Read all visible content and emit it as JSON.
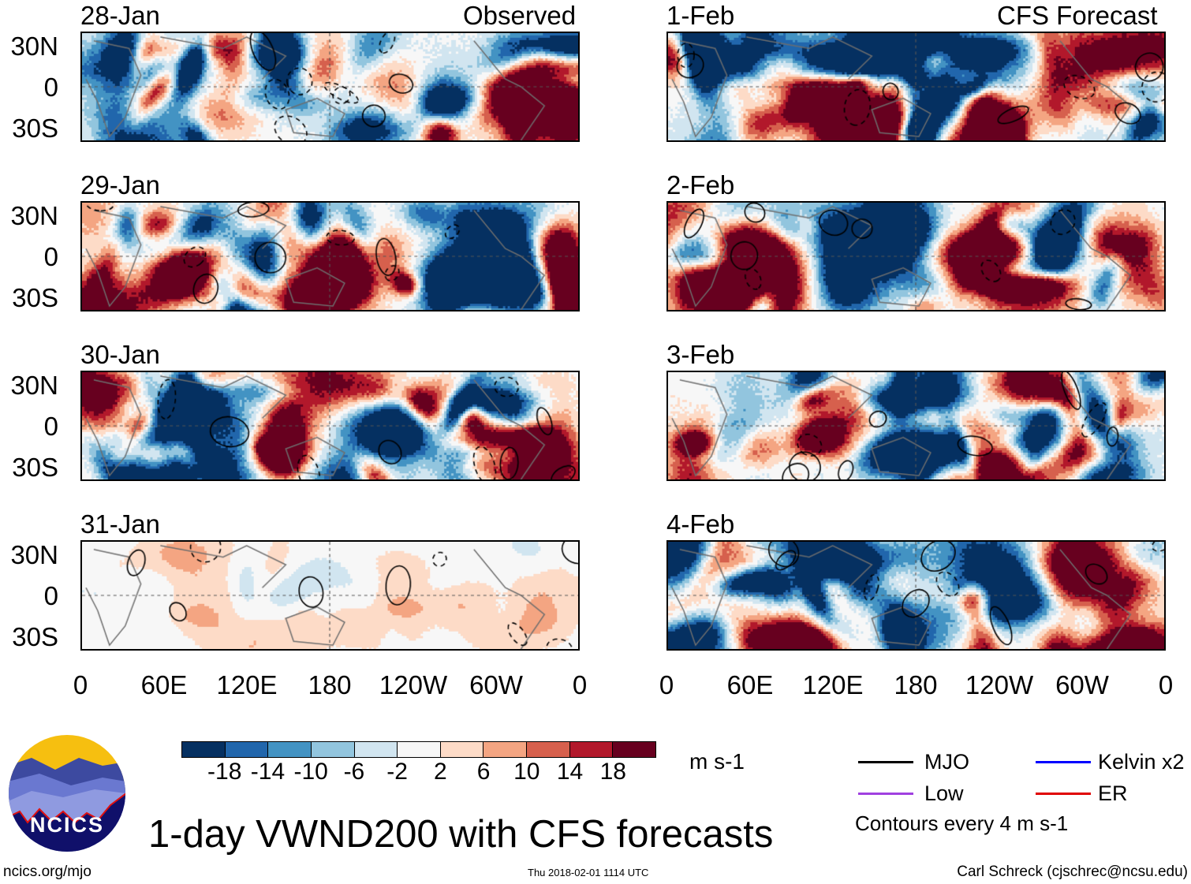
{
  "header": {
    "left_label": "Observed",
    "right_label": "CFS Forecast"
  },
  "panels": {
    "observed": [
      {
        "date": "28-Jan",
        "seed": 3,
        "amp": 1.0
      },
      {
        "date": "29-Jan",
        "seed": 11,
        "amp": 1.0
      },
      {
        "date": "30-Jan",
        "seed": 19,
        "amp": 1.0
      },
      {
        "date": "31-Jan",
        "seed": 27,
        "amp": 0.12
      }
    ],
    "forecast": [
      {
        "date": "1-Feb",
        "seed": 5,
        "amp": 1.0
      },
      {
        "date": "2-Feb",
        "seed": 13,
        "amp": 1.0
      },
      {
        "date": "3-Feb",
        "seed": 21,
        "amp": 1.0
      },
      {
        "date": "4-Feb",
        "seed": 29,
        "amp": 1.0
      }
    ]
  },
  "lat_labels": [
    "30N",
    "0",
    "30S"
  ],
  "lon_labels": [
    "0",
    "60E",
    "120E",
    "180",
    "120W",
    "60W",
    "0"
  ],
  "colorbar": {
    "colors": [
      "#053061",
      "#2166ac",
      "#4393c3",
      "#92c5de",
      "#d1e5f0",
      "#f7f7f7",
      "#fddbc7",
      "#f4a582",
      "#d6604d",
      "#b2182b",
      "#67001f"
    ],
    "labels": [
      "-18",
      "-14",
      "-10",
      "-6",
      "-2",
      "2",
      "6",
      "10",
      "14",
      "18"
    ],
    "units": "m s-1"
  },
  "legend": {
    "items": [
      {
        "label": "MJO",
        "color": "#000000"
      },
      {
        "label": "Kelvin x2",
        "color": "#0000ff"
      },
      {
        "label": "Low",
        "color": "#a040e0"
      },
      {
        "label": "ER",
        "color": "#e00000"
      }
    ],
    "note": "Contours every 4 m s-1"
  },
  "title": "1-day VWND200 with CFS forecasts",
  "logo": {
    "text": "NCICS"
  },
  "footer": {
    "url": "ncics.org/mjo",
    "timestamp": "Thu 2018-02-01 1114 UTC",
    "author": "Carl Schreck (cjschrec@ncsu.edu)"
  }
}
